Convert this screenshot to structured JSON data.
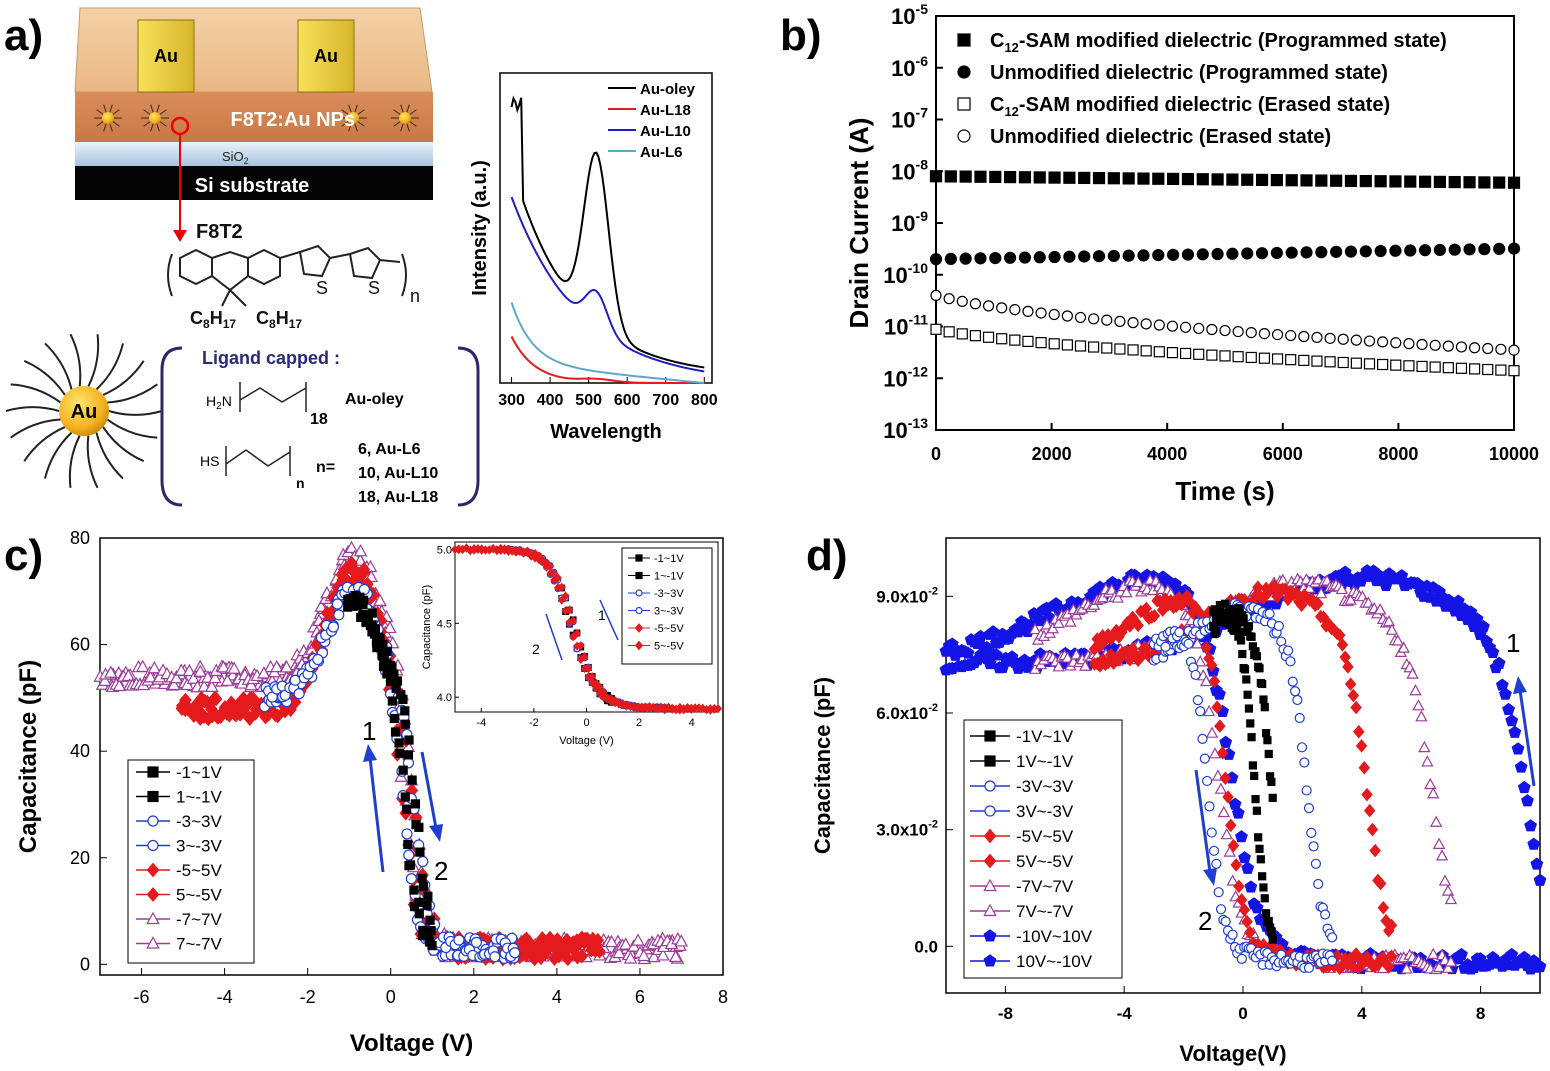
{
  "panels": {
    "a": {
      "label": "a)",
      "device": {
        "electrode_label": "Au",
        "layer_label": "F8T2:Au NPs",
        "oxide_label": "SiO",
        "oxide_sub": "2",
        "substrate_label": "Si substrate"
      },
      "molecule": {
        "name": "F8T2",
        "sub_label_1": "C",
        "sub_label_1_sub": "8",
        "sub_label_1_sub2": "H",
        "sub_label_1_sub3": "17",
        "n": "n",
        "s_label": "S"
      },
      "nanoparticle_label": "Au",
      "ligand": {
        "title": "Ligand capped :",
        "amine_head": "H",
        "amine_sub": "2",
        "amine_tail": "N",
        "amine_count": "18",
        "amine_name": "Au-oley",
        "thiol_head": "HS",
        "thiol_n": "n",
        "thiol_eq": "n=",
        "thiol_values": [
          "6, Au-L6",
          "10, Au-L10",
          "18, Au-L18"
        ]
      },
      "inset_chart": {
        "type": "line",
        "xlabel": "Wavelength",
        "ylabel": "Intensity (a.u.)",
        "x_ticks": [
          "300",
          "400",
          "500",
          "600",
          "700",
          "800"
        ],
        "xlim": [
          270,
          820
        ],
        "series": [
          {
            "name": "Au-oley",
            "color": "#000000"
          },
          {
            "name": "Au-L18",
            "color": "#e41a1c"
          },
          {
            "name": "Au-L10",
            "color": "#1f1fbf"
          },
          {
            "name": "Au-L6",
            "color": "#5fa8c8"
          }
        ]
      }
    },
    "b": {
      "label": "b)",
      "chart_data": {
        "type": "scatter",
        "xlabel": "Time (s)",
        "ylabel": "Drain Current (A)",
        "xlim": [
          0,
          10000
        ],
        "ylim": [
          1e-13,
          1e-05
        ],
        "y_scale": "log",
        "x_ticks": [
          "0",
          "2000",
          "4000",
          "6000",
          "8000",
          "10000"
        ],
        "y_tick_base": "10",
        "y_tick_exps": [
          "-5",
          "-6",
          "-7",
          "-8",
          "-9",
          "-10",
          "-11",
          "-12",
          "-13"
        ],
        "legend_placement": "top-right",
        "series": [
          {
            "name_pre": "C",
            "name_sub": "12",
            "name_post": "-SAM modified dielectric (Programmed state)",
            "marker": "square-filled",
            "y_start": 8e-09,
            "y_end": 6e-09
          },
          {
            "name_pre": "Unmodified dielectric  (Programmed state)",
            "name_sub": "",
            "name_post": "",
            "marker": "circle-filled",
            "y_start": 2e-10,
            "y_end": 3.2e-10
          },
          {
            "name_pre": "C",
            "name_sub": "12",
            "name_post": "-SAM modified dielectric  (Erased state)",
            "marker": "square-open",
            "y_start": 1.2e-11,
            "y_end": 1.4e-12
          },
          {
            "name_pre": "Unmodified dielectric  (Erased state)",
            "name_sub": "",
            "name_post": "",
            "marker": "circle-open",
            "y_start": 6e-11,
            "y_end": 3.5e-12
          }
        ]
      }
    },
    "c": {
      "label": "c)",
      "chart_data": {
        "type": "scatter",
        "xlabel": "Voltage (V)",
        "ylabel": "Capacitance (pF)",
        "xlim": [
          -7,
          8
        ],
        "ylim": [
          -2,
          80
        ],
        "x_ticks": [
          "-6",
          "-4",
          "-2",
          "0",
          "2",
          "4",
          "6",
          "8"
        ],
        "y_ticks": [
          "0",
          "20",
          "40",
          "60",
          "80"
        ],
        "legend_placement": "bottom-left",
        "series": [
          {
            "name": "-1~1V",
            "color": "#000000",
            "marker": "square-filled",
            "range": 1,
            "peak": 68,
            "base": 52
          },
          {
            "name": "1~-1V",
            "color": "#000000",
            "marker": "square-filled",
            "range": 1,
            "peak": 68,
            "base": 52
          },
          {
            "name": "-3~3V",
            "color": "#1f3fd0",
            "marker": "circle-open",
            "range": 3,
            "peak": 70,
            "base": 50
          },
          {
            "name": "3~-3V",
            "color": "#1f3fd0",
            "marker": "circle-open",
            "range": 3,
            "peak": 70,
            "base": 50
          },
          {
            "name": "-5~5V",
            "color": "#e41a1c",
            "marker": "diamond-filled",
            "range": 5,
            "peak": 74,
            "base": 48
          },
          {
            "name": "5~-5V",
            "color": "#e41a1c",
            "marker": "diamond-filled",
            "range": 5,
            "peak": 74,
            "base": 48
          },
          {
            "name": "-7~7V",
            "color": "#9b3c9b",
            "marker": "triangle-open",
            "range": 7,
            "peak": 77,
            "base": 54
          },
          {
            "name": "7~-7V",
            "color": "#9b3c9b",
            "marker": "triangle-open",
            "range": 7,
            "peak": 77,
            "base": 54
          }
        ],
        "annotations": [
          "1",
          "2"
        ],
        "inset": {
          "xlabel": "Voltage (V)",
          "ylabel": "Capacitance (pF)",
          "xlim": [
            -5,
            5
          ],
          "ylim": [
            3.9,
            5.05
          ],
          "x_ticks": [
            "-4",
            "-2",
            "0",
            "2",
            "4"
          ],
          "y_ticks": [
            "4.0",
            "4.5",
            "5.0"
          ],
          "legend": [
            "-1~1V",
            "1~-1V",
            "-3~3V",
            "3~-3V",
            "-5~5V",
            "5~-5V"
          ],
          "annotations": [
            "1",
            "2"
          ]
        }
      }
    },
    "d": {
      "label": "d)",
      "chart_data": {
        "type": "scatter",
        "xlabel": "Voltage(V)",
        "ylabel": "Capacitance (pF)",
        "xlim": [
          -10,
          10
        ],
        "ylim": [
          -0.012,
          0.105
        ],
        "x_ticks": [
          "-8",
          "-4",
          "0",
          "4",
          "8"
        ],
        "y_ticks": [
          "0.0",
          "3.0x10",
          "6.0x10",
          "9.0x10"
        ],
        "y_tick_exp": "-2",
        "legend_placement": "bottom-left",
        "series": [
          {
            "name": "-1V~1V",
            "color": "#000000",
            "marker": "square-filled",
            "range": 1
          },
          {
            "name": "1V~-1V",
            "color": "#000000",
            "marker": "square-filled",
            "range": 1
          },
          {
            "name": "-3V~3V",
            "color": "#1f3fd0",
            "marker": "circle-open",
            "range": 3
          },
          {
            "name": "3V~-3V",
            "color": "#1f3fd0",
            "marker": "circle-open",
            "range": 3
          },
          {
            "name": "-5V~5V",
            "color": "#e41a1c",
            "marker": "diamond-filled",
            "range": 5
          },
          {
            "name": "5V~-5V",
            "color": "#e41a1c",
            "marker": "diamond-filled",
            "range": 5
          },
          {
            "name": "-7V~7V",
            "color": "#9b3c9b",
            "marker": "triangle-open",
            "range": 7
          },
          {
            "name": "7V~-7V",
            "color": "#9b3c9b",
            "marker": "triangle-open",
            "range": 7
          },
          {
            "name": "-10V~10V",
            "color": "#1414e6",
            "marker": "pentagon-filled",
            "range": 10
          },
          {
            "name": "10V~-10V",
            "color": "#1414e6",
            "marker": "pentagon-filled",
            "range": 10
          }
        ],
        "annotations": [
          "1",
          "2"
        ]
      }
    }
  }
}
